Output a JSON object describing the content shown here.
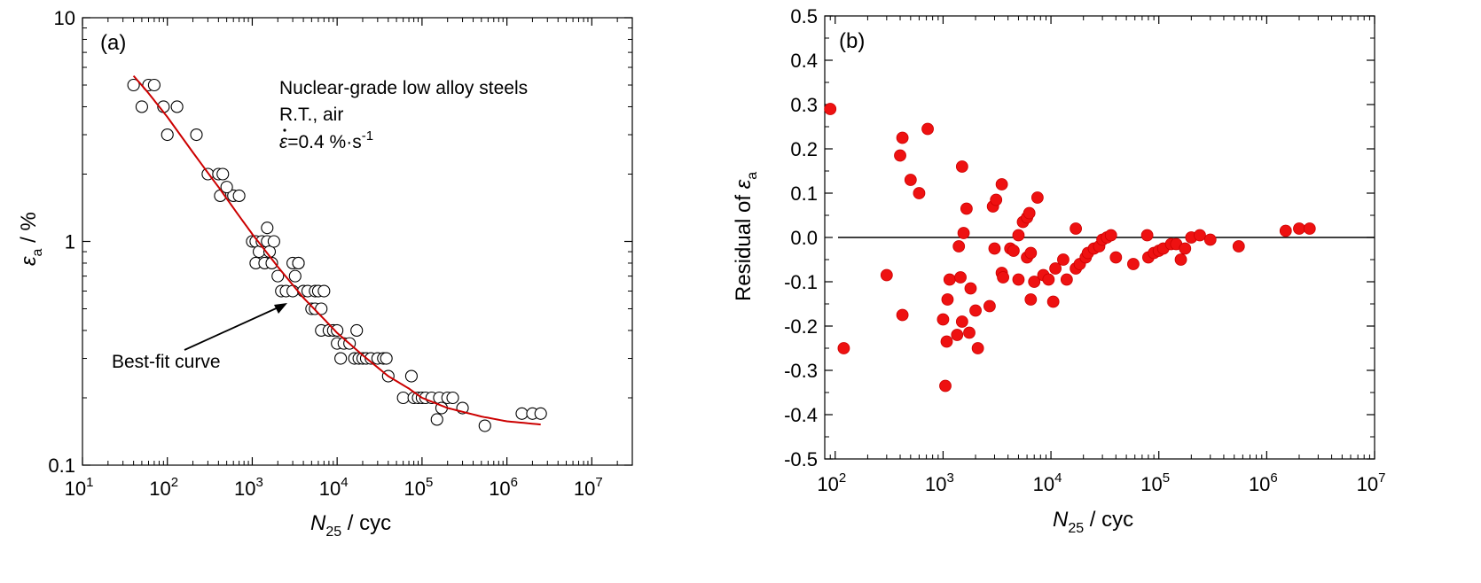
{
  "colors": {
    "fit_curve": "#cc0000",
    "residual_marker": "#ee1111",
    "axis": "#000000"
  },
  "chart_data": [
    {
      "type": "scatter",
      "panel_label": "(a)",
      "x_scale": "log",
      "y_scale": "log",
      "xlim": [
        10,
        30000000
      ],
      "ylim": [
        0.1,
        10
      ],
      "x_ticks": [
        {
          "base": "10",
          "exp": "1",
          "value": 10
        },
        {
          "base": "10",
          "exp": "2",
          "value": 100
        },
        {
          "base": "10",
          "exp": "3",
          "value": 1000
        },
        {
          "base": "10",
          "exp": "4",
          "value": 10000
        },
        {
          "base": "10",
          "exp": "5",
          "value": 100000
        },
        {
          "base": "10",
          "exp": "6",
          "value": 1000000
        },
        {
          "base": "10",
          "exp": "7",
          "value": 10000000
        }
      ],
      "y_ticks": [
        {
          "label": "0.1",
          "value": 0.1
        },
        {
          "label": "1",
          "value": 1
        },
        {
          "label": "10",
          "value": 10
        }
      ],
      "xlabel": {
        "main": "N",
        "sub": "25",
        "rest": " / cyc"
      },
      "ylabel": {
        "main": "ε",
        "sub": "a",
        "rest": " / %"
      },
      "annotations": {
        "line1": "Nuclear-grade low alloy steels",
        "line2": "R.T., air",
        "line3_symbol": "ε",
        "line3_value": "=0.4 %·s",
        "line3_exp": "-1",
        "arrow_label": "Best-fit curve"
      },
      "fit_curve_points": [
        [
          40,
          5.5
        ],
        [
          60,
          4.6
        ],
        [
          100,
          3.6
        ],
        [
          200,
          2.5
        ],
        [
          400,
          1.75
        ],
        [
          700,
          1.3
        ],
        [
          1000,
          1.08
        ],
        [
          2000,
          0.77
        ],
        [
          4000,
          0.56
        ],
        [
          7000,
          0.45
        ],
        [
          10000,
          0.39
        ],
        [
          20000,
          0.31
        ],
        [
          40000,
          0.25
        ],
        [
          70000,
          0.22
        ],
        [
          100000,
          0.2
        ],
        [
          200000,
          0.18
        ],
        [
          500000,
          0.165
        ],
        [
          1000000,
          0.157
        ],
        [
          2500000,
          0.152
        ]
      ],
      "points": [
        [
          40,
          5
        ],
        [
          50,
          4
        ],
        [
          60,
          5
        ],
        [
          70,
          5
        ],
        [
          90,
          4
        ],
        [
          100,
          3
        ],
        [
          130,
          4
        ],
        [
          220,
          3
        ],
        [
          300,
          2
        ],
        [
          400,
          2
        ],
        [
          450,
          2
        ],
        [
          420,
          1.6
        ],
        [
          600,
          1.6
        ],
        [
          500,
          1.75
        ],
        [
          700,
          1.6
        ],
        [
          1000,
          1
        ],
        [
          1100,
          1
        ],
        [
          1200,
          0.9
        ],
        [
          1300,
          1
        ],
        [
          1100,
          0.8
        ],
        [
          1400,
          0.8
        ],
        [
          1500,
          1
        ],
        [
          1600,
          0.9
        ],
        [
          1700,
          0.8
        ],
        [
          1800,
          1
        ],
        [
          1500,
          1.15
        ],
        [
          2000,
          0.7
        ],
        [
          2200,
          0.6
        ],
        [
          2500,
          0.6
        ],
        [
          3000,
          0.6
        ],
        [
          3000,
          0.8
        ],
        [
          3200,
          0.7
        ],
        [
          3500,
          0.8
        ],
        [
          4000,
          0.6
        ],
        [
          3500,
          0.8
        ],
        [
          4500,
          0.6
        ],
        [
          5000,
          0.5
        ],
        [
          5500,
          0.6
        ],
        [
          5500,
          0.5
        ],
        [
          6000,
          0.6
        ],
        [
          6500,
          0.5
        ],
        [
          7000,
          0.6
        ],
        [
          6500,
          0.4
        ],
        [
          8000,
          0.4
        ],
        [
          9000,
          0.4
        ],
        [
          10000,
          0.35
        ],
        [
          10000,
          0.4
        ],
        [
          11000,
          0.3
        ],
        [
          12000,
          0.35
        ],
        [
          14000,
          0.35
        ],
        [
          16000,
          0.3
        ],
        [
          17000,
          0.4
        ],
        [
          18000,
          0.3
        ],
        [
          20000,
          0.3
        ],
        [
          22000,
          0.3
        ],
        [
          25000,
          0.3
        ],
        [
          30000,
          0.3
        ],
        [
          35000,
          0.3
        ],
        [
          38000,
          0.3
        ],
        [
          40000,
          0.25
        ],
        [
          60000,
          0.2
        ],
        [
          75000,
          0.25
        ],
        [
          80000,
          0.2
        ],
        [
          90000,
          0.2
        ],
        [
          100000,
          0.2
        ],
        [
          110000,
          0.2
        ],
        [
          130000,
          0.2
        ],
        [
          150000,
          0.16
        ],
        [
          160000,
          0.2
        ],
        [
          170000,
          0.18
        ],
        [
          200000,
          0.2
        ],
        [
          230000,
          0.2
        ],
        [
          300000,
          0.18
        ],
        [
          550000,
          0.15
        ],
        [
          1500000,
          0.17
        ],
        [
          2000000,
          0.17
        ],
        [
          2500000,
          0.17
        ]
      ]
    },
    {
      "type": "scatter",
      "panel_label": "(b)",
      "x_scale": "log",
      "y_scale": "linear",
      "xlim": [
        80,
        10000000
      ],
      "ylim": [
        -0.5,
        0.5
      ],
      "reference_line_y": 0,
      "x_ticks": [
        {
          "base": "10",
          "exp": "2",
          "value": 100
        },
        {
          "base": "10",
          "exp": "3",
          "value": 1000
        },
        {
          "base": "10",
          "exp": "4",
          "value": 10000
        },
        {
          "base": "10",
          "exp": "5",
          "value": 100000
        },
        {
          "base": "10",
          "exp": "6",
          "value": 1000000
        },
        {
          "base": "10",
          "exp": "7",
          "value": 10000000
        }
      ],
      "y_ticks": [
        {
          "label": "0.5",
          "value": 0.5
        },
        {
          "label": "0.4",
          "value": 0.4
        },
        {
          "label": "0.3",
          "value": 0.3
        },
        {
          "label": "0.2",
          "value": 0.2
        },
        {
          "label": "0.1",
          "value": 0.1
        },
        {
          "label": "0.0",
          "value": 0.0
        },
        {
          "label": "-0.1",
          "value": -0.1
        },
        {
          "label": "-0.2",
          "value": -0.2
        },
        {
          "label": "-0.3",
          "value": -0.3
        },
        {
          "label": "-0.4",
          "value": -0.4
        },
        {
          "label": "-0.5",
          "value": -0.5
        }
      ],
      "xlabel": {
        "main": "N",
        "sub": "25",
        "rest": " / cyc"
      },
      "ylabel": {
        "main": "Residual of ",
        "symbol": "ε",
        "sub": "a"
      },
      "points": [
        [
          90,
          0.29
        ],
        [
          120,
          -0.25
        ],
        [
          300,
          -0.085
        ],
        [
          400,
          0.185
        ],
        [
          420,
          0.225
        ],
        [
          420,
          -0.175
        ],
        [
          500,
          0.13
        ],
        [
          600,
          0.1
        ],
        [
          720,
          0.245
        ],
        [
          1000,
          -0.185
        ],
        [
          1050,
          -0.335
        ],
        [
          1080,
          -0.235
        ],
        [
          1100,
          -0.14
        ],
        [
          1150,
          -0.095
        ],
        [
          1350,
          -0.22
        ],
        [
          1400,
          -0.02
        ],
        [
          1450,
          -0.09
        ],
        [
          1500,
          0.16
        ],
        [
          1500,
          -0.19
        ],
        [
          1550,
          0.01
        ],
        [
          1650,
          0.065
        ],
        [
          1750,
          -0.215
        ],
        [
          1800,
          -0.115
        ],
        [
          2000,
          -0.165
        ],
        [
          2100,
          -0.25
        ],
        [
          2700,
          -0.155
        ],
        [
          2900,
          0.07
        ],
        [
          3000,
          -0.025
        ],
        [
          3100,
          0.085
        ],
        [
          3500,
          0.12
        ],
        [
          3500,
          -0.08
        ],
        [
          3600,
          -0.09
        ],
        [
          4200,
          -0.025
        ],
        [
          4500,
          -0.03
        ],
        [
          5000,
          0.005
        ],
        [
          5000,
          -0.095
        ],
        [
          5500,
          0.035
        ],
        [
          6000,
          0.045
        ],
        [
          6000,
          -0.045
        ],
        [
          6300,
          0.055
        ],
        [
          6500,
          -0.035
        ],
        [
          6500,
          -0.14
        ],
        [
          7000,
          -0.1
        ],
        [
          7500,
          0.09
        ],
        [
          8500,
          -0.085
        ],
        [
          9500,
          -0.095
        ],
        [
          10500,
          -0.145
        ],
        [
          11000,
          -0.07
        ],
        [
          13000,
          -0.05
        ],
        [
          14000,
          -0.095
        ],
        [
          17000,
          0.02
        ],
        [
          17000,
          -0.07
        ],
        [
          18500,
          -0.06
        ],
        [
          21000,
          -0.045
        ],
        [
          22000,
          -0.035
        ],
        [
          25000,
          -0.025
        ],
        [
          28000,
          -0.02
        ],
        [
          30000,
          -0.005
        ],
        [
          33000,
          0.0
        ],
        [
          36000,
          0.005
        ],
        [
          40000,
          -0.045
        ],
        [
          58000,
          -0.06
        ],
        [
          78000,
          0.005
        ],
        [
          80000,
          -0.045
        ],
        [
          90000,
          -0.035
        ],
        [
          100000,
          -0.03
        ],
        [
          110000,
          -0.025
        ],
        [
          130000,
          -0.015
        ],
        [
          145000,
          -0.015
        ],
        [
          160000,
          -0.05
        ],
        [
          175000,
          -0.025
        ],
        [
          200000,
          0.0
        ],
        [
          240000,
          0.005
        ],
        [
          300000,
          -0.005
        ],
        [
          550000,
          -0.02
        ],
        [
          1500000,
          0.015
        ],
        [
          2000000,
          0.02
        ],
        [
          2500000,
          0.02
        ]
      ]
    }
  ]
}
